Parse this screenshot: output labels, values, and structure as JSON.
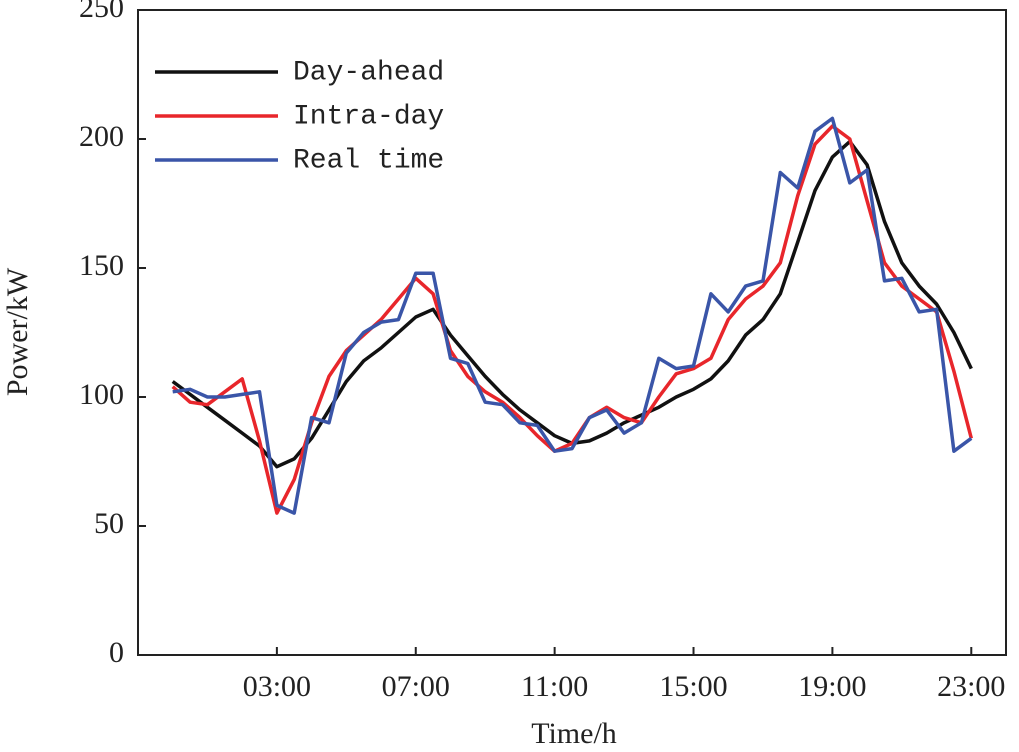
{
  "chart_data": {
    "type": "line",
    "x_label": "Time/h",
    "y_label": "Power/kW",
    "x": [
      0,
      0.5,
      1,
      1.5,
      2,
      2.5,
      3,
      3.5,
      4,
      4.5,
      5,
      5.5,
      6,
      6.5,
      7,
      7.5,
      8,
      8.5,
      9,
      9.5,
      10,
      10.5,
      11,
      11.5,
      12,
      12.5,
      13,
      13.5,
      14,
      14.5,
      15,
      15.5,
      16,
      16.5,
      17,
      17.5,
      18,
      18.5,
      19,
      19.5,
      20,
      20.5,
      21,
      21.5,
      22,
      22.5,
      23
    ],
    "series": [
      {
        "name": "Day-ahead",
        "color": "#111111",
        "values": [
          106,
          101,
          96,
          91,
          86,
          81,
          73,
          76,
          84,
          95,
          106,
          114,
          119,
          125,
          131,
          134,
          124,
          116,
          108,
          101,
          95,
          90,
          85,
          82,
          83,
          86,
          90,
          93,
          96,
          100,
          103,
          107,
          114,
          124,
          130,
          140,
          160,
          180,
          193,
          199,
          190,
          168,
          152,
          143,
          136,
          125,
          111
        ]
      },
      {
        "name": "Intra-day",
        "color": "#e8262b",
        "values": [
          104,
          98,
          97,
          102,
          107,
          83,
          55,
          68,
          90,
          108,
          118,
          124,
          130,
          138,
          146,
          140,
          118,
          108,
          102,
          98,
          92,
          85,
          79,
          82,
          92,
          96,
          92,
          90,
          100,
          109,
          111,
          115,
          130,
          138,
          143,
          152,
          178,
          198,
          205,
          200,
          176,
          152,
          143,
          138,
          133,
          110,
          84
        ]
      },
      {
        "name": "Real time",
        "color": "#3a55a8",
        "values": [
          102,
          103,
          100,
          100,
          101,
          102,
          58,
          55,
          92,
          90,
          117,
          125,
          129,
          130,
          148,
          148,
          115,
          113,
          98,
          97,
          90,
          89,
          79,
          80,
          92,
          95,
          86,
          90,
          115,
          111,
          112,
          140,
          133,
          143,
          145,
          187,
          181,
          203,
          208,
          183,
          188,
          145,
          146,
          133,
          134,
          79,
          84
        ]
      }
    ],
    "xlim": [
      -1,
      24
    ],
    "xticks": [
      {
        "value": 3,
        "label": "03:00"
      },
      {
        "value": 7,
        "label": "07:00"
      },
      {
        "value": 11,
        "label": "11:00"
      },
      {
        "value": 15,
        "label": "15:00"
      },
      {
        "value": 19,
        "label": "19:00"
      },
      {
        "value": 23,
        "label": "23:00"
      }
    ],
    "ylim": [
      0,
      250
    ],
    "yticks": [
      0,
      50,
      100,
      150,
      200,
      250
    ],
    "grid": false,
    "legend": "upper left"
  }
}
